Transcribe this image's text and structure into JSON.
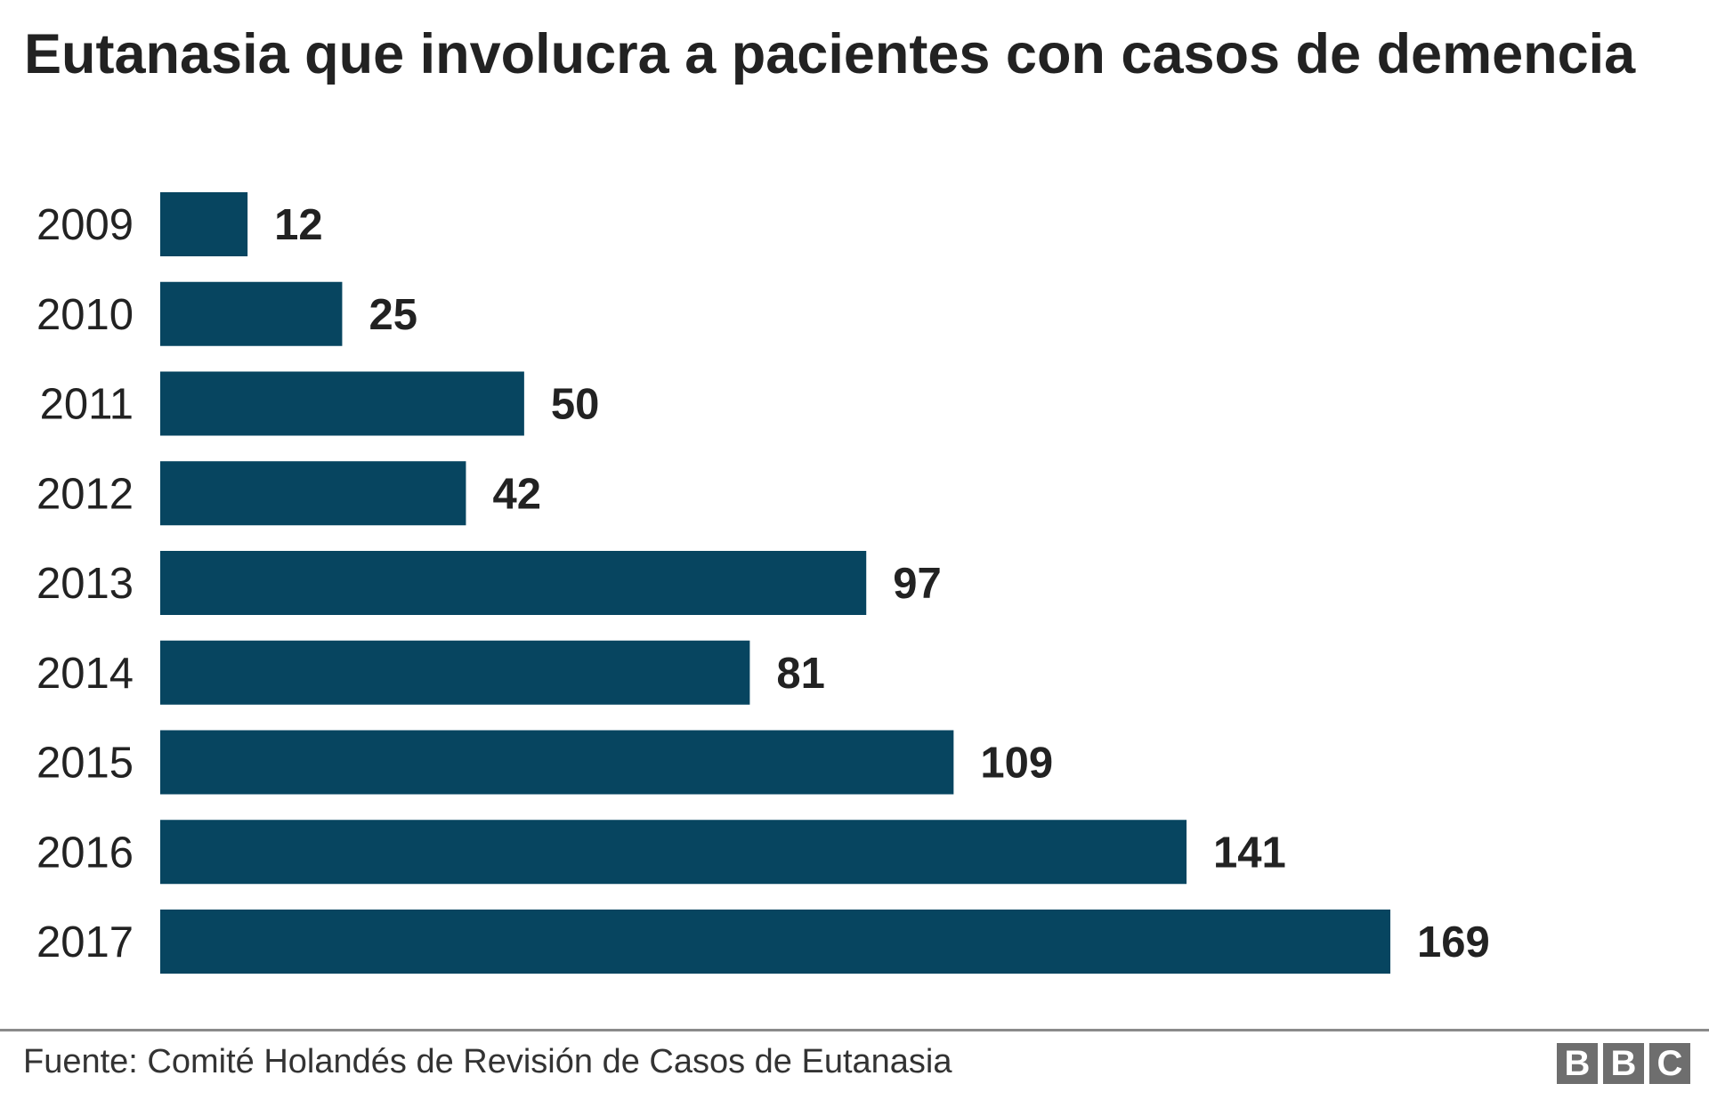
{
  "chart_data": {
    "type": "bar",
    "orientation": "horizontal",
    "title": "Eutanasia que involucra a pacientes con casos de demencia",
    "categories": [
      "2009",
      "2010",
      "2011",
      "2012",
      "2013",
      "2014",
      "2015",
      "2016",
      "2017"
    ],
    "values": [
      12,
      25,
      50,
      42,
      97,
      81,
      109,
      141,
      169
    ],
    "xlabel": "",
    "ylabel": "",
    "grid": false,
    "data_labels": true,
    "bar_color": "#074560"
  },
  "footer": {
    "source": "Fuente: Comité Holandés de Revisión de Casos de Eutanasia",
    "logo": [
      "B",
      "B",
      "C"
    ]
  }
}
